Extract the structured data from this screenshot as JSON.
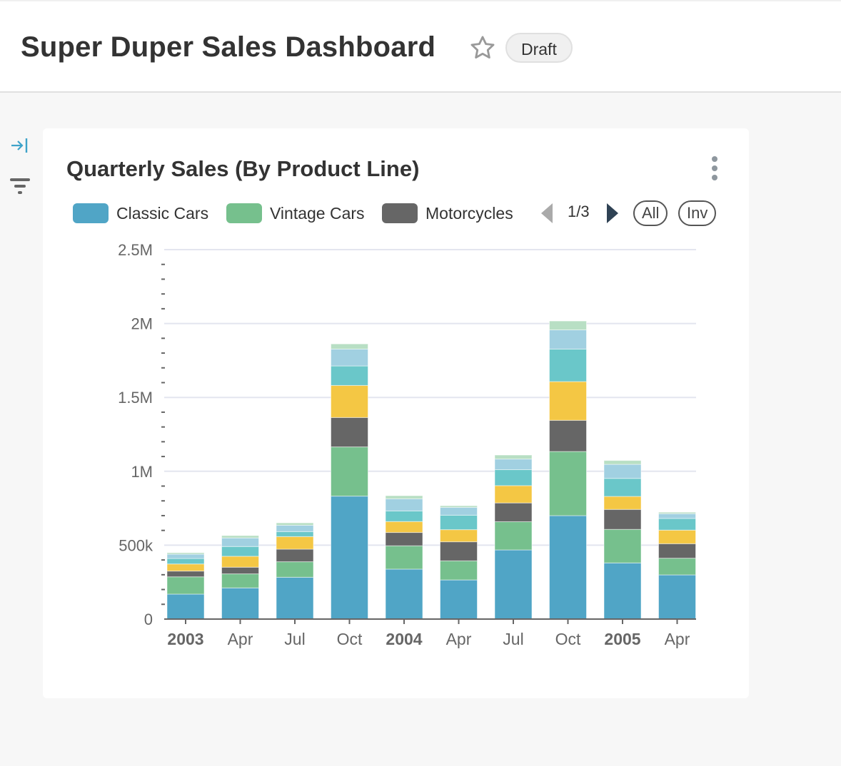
{
  "header": {
    "title": "Super Duper Sales Dashboard",
    "badge": "Draft",
    "star_icon": "star-outline-icon"
  },
  "sidebar": {
    "expand_icon": "expand-right-icon",
    "filter_icon": "filter-icon"
  },
  "card": {
    "menu_icon": "more-vertical-icon"
  },
  "legend": {
    "page": "1/3",
    "all_label": "All",
    "inv_label": "Inv"
  },
  "chart_data": {
    "type": "bar",
    "stacked": true,
    "title": "Quarterly Sales (By Product Line)",
    "categories": [
      "2003",
      "Apr",
      "Jul",
      "Oct",
      "2004",
      "Apr",
      "Jul",
      "Oct",
      "2005",
      "Apr"
    ],
    "bold_categories": [
      "2003",
      "2004",
      "2005"
    ],
    "yticks": [
      "0",
      "500k",
      "1M",
      "1.5M",
      "2M",
      "2.5M"
    ],
    "ylim": [
      0,
      2500000
    ],
    "grid": true,
    "legend_placement": "top",
    "series": [
      {
        "name": "Classic Cars",
        "color": "#50a5c6",
        "values": [
          169000,
          211000,
          283000,
          832000,
          338000,
          265000,
          468000,
          700000,
          380000,
          299000
        ]
      },
      {
        "name": "Vintage Cars",
        "color": "#76c08d",
        "values": [
          117000,
          95000,
          105000,
          333000,
          158000,
          129000,
          191000,
          434000,
          227000,
          113000
        ]
      },
      {
        "name": "Motorcycles",
        "color": "#666666",
        "values": [
          39000,
          45000,
          85000,
          199000,
          90000,
          129000,
          127000,
          211000,
          135000,
          98000
        ]
      },
      {
        "color": "#f4c744",
        "values": [
          48000,
          74000,
          85000,
          217000,
          74000,
          82000,
          117000,
          262000,
          88000,
          92000
        ]
      },
      {
        "color": "#6ac7c9",
        "values": [
          37000,
          66000,
          34000,
          132000,
          72000,
          98000,
          108000,
          220000,
          122000,
          79000
        ]
      },
      {
        "color": "#a1d0e1",
        "values": [
          29000,
          58000,
          43000,
          114000,
          82000,
          53000,
          72000,
          130000,
          95000,
          32000
        ]
      },
      {
        "color": "#b8dfc4",
        "values": [
          10000,
          16000,
          16000,
          35000,
          21000,
          11000,
          27000,
          60000,
          26000,
          10000
        ]
      }
    ]
  }
}
